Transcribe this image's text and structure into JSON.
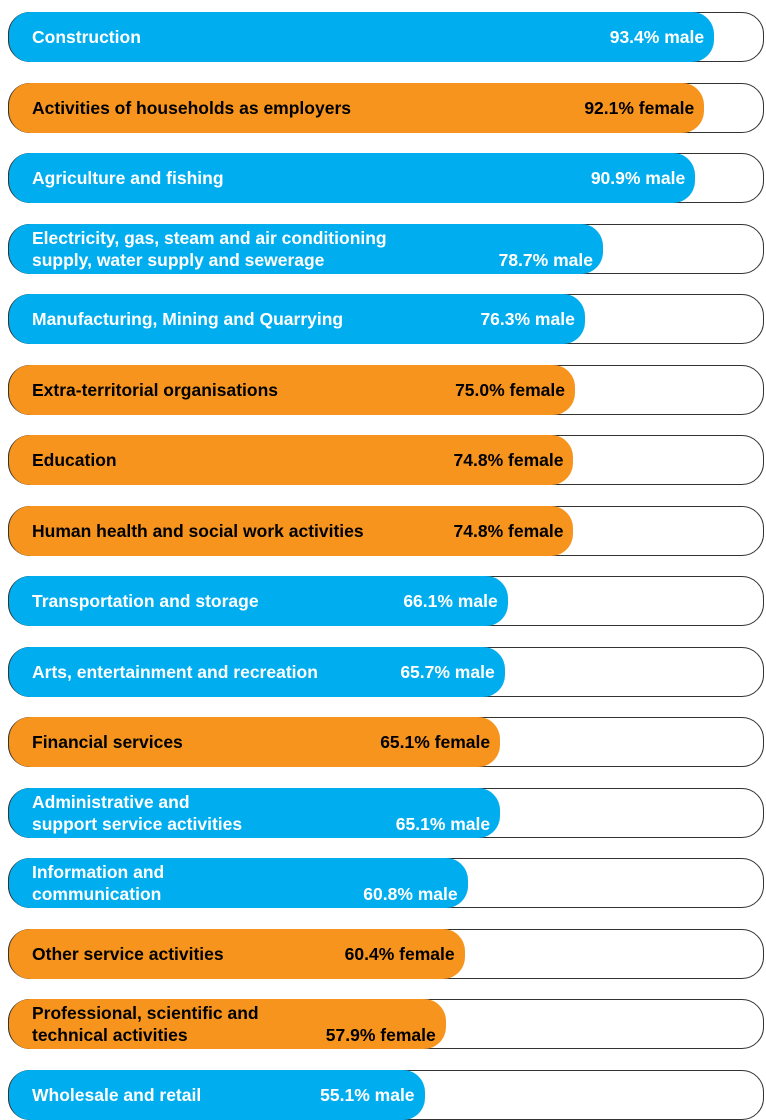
{
  "chart_data": {
    "type": "bar",
    "categories": [
      "Construction",
      "Activities of households as employers",
      "Agriculture and fishing",
      "Electricity, gas, steam and air conditioning\nsupply, water supply and sewerage",
      "Manufacturing, Mining and Quarrying",
      "Extra-territorial organisations",
      "Education",
      "Human health and social work activities",
      "Transportation and storage",
      "Arts, entertainment and recreation",
      "Financial services",
      "Administrative and\nsupport service activities",
      "Information and\ncommunication",
      "Other service activities",
      "Professional, scientific and\ntechnical activities",
      "Wholesale and retail"
    ],
    "values": [
      93.4,
      92.1,
      90.9,
      78.7,
      76.3,
      75.0,
      74.8,
      74.8,
      66.1,
      65.7,
      65.1,
      65.1,
      60.8,
      60.4,
      57.9,
      55.1
    ],
    "value_labels": [
      "93.4% male",
      "92.1% female",
      "90.9% male",
      "78.7% male",
      "76.3% male",
      "75.0% female",
      "74.8% female",
      "74.8% female",
      "66.1% male",
      "65.7% male",
      "65.1% female",
      "65.1% male",
      "60.8% male",
      "60.4% female",
      "57.9% female",
      "55.1% male"
    ],
    "colors": [
      "#00aeef",
      "#f7941d",
      "#00aeef",
      "#00aeef",
      "#00aeef",
      "#f7941d",
      "#f7941d",
      "#f7941d",
      "#00aeef",
      "#00aeef",
      "#f7941d",
      "#00aeef",
      "#00aeef",
      "#f7941d",
      "#f7941d",
      "#00aeef"
    ],
    "xlim": [
      0,
      100
    ]
  }
}
